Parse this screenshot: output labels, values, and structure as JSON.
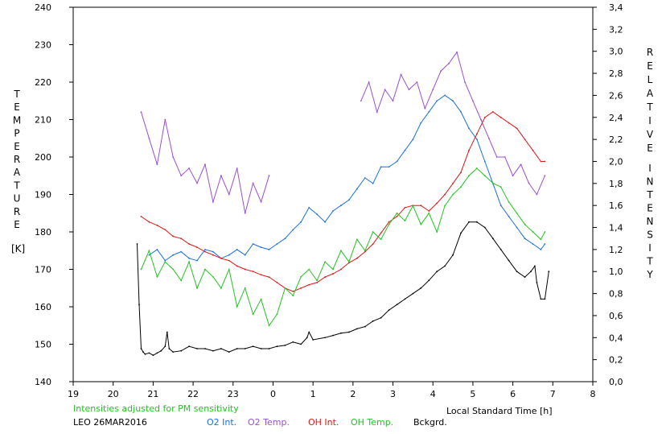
{
  "chart_data": {
    "type": "line",
    "xlabel": "Local Standard Time [h]",
    "x_ticks": [
      "19",
      "20",
      "21",
      "22",
      "23",
      "0",
      "1",
      "2",
      "3",
      "4",
      "5",
      "6",
      "7",
      "8"
    ],
    "y_left_label_letters": [
      "T",
      "E",
      "M",
      "P",
      "E",
      "R",
      "A",
      "T",
      "U",
      "R",
      "E"
    ],
    "y_left_unit": "[K]",
    "y_left_ticks": [
      140,
      150,
      160,
      170,
      180,
      190,
      200,
      210,
      220,
      230,
      240
    ],
    "ylim_left": [
      140,
      240
    ],
    "y_right_label_letters_1": [
      "R",
      "E",
      "L",
      "A",
      "T",
      "I",
      "V",
      "E"
    ],
    "y_right_label_letters_2": [
      "I",
      "N",
      "T",
      "E",
      "N",
      "S",
      "I",
      "T",
      "Y"
    ],
    "y_right_ticks": [
      "0,0",
      "0,2",
      "0,4",
      "0,6",
      "0,8",
      "1,0",
      "1,2",
      "1,4",
      "1,6",
      "1,8",
      "2,0",
      "2,2",
      "2,4",
      "2,6",
      "2,8",
      "3,0",
      "3,2",
      "3,4"
    ],
    "ylim_right": [
      0,
      3.4
    ],
    "xlim": [
      -5,
      8
    ],
    "note": "Intensities adjusted for PM sensitivity",
    "station_date": "LEO 26MAR2016",
    "series": [
      {
        "name": "O2 Int.",
        "color": "#1a6fe0",
        "axis": "right",
        "x": [
          -3.1,
          -2.9,
          -2.7,
          -2.5,
          -2.3,
          -2.1,
          -1.9,
          -1.7,
          -1.5,
          -1.3,
          -1.1,
          -0.9,
          -0.7,
          -0.5,
          -0.3,
          -0.1,
          0.1,
          0.3,
          0.5,
          0.7,
          0.9,
          1.1,
          1.3,
          1.5,
          1.7,
          1.9,
          2.1,
          2.3,
          2.5,
          2.7,
          2.9,
          3.1,
          3.3,
          3.5,
          3.7,
          3.9,
          4.1,
          4.3,
          4.5,
          4.7,
          4.9,
          5.1,
          5.3,
          5.5,
          5.7,
          5.9,
          6.1,
          6.3,
          6.5,
          6.7,
          6.8
        ],
        "y": [
          1.15,
          1.2,
          1.1,
          1.15,
          1.18,
          1.12,
          1.1,
          1.2,
          1.18,
          1.12,
          1.15,
          1.2,
          1.15,
          1.25,
          1.22,
          1.2,
          1.25,
          1.3,
          1.38,
          1.45,
          1.58,
          1.52,
          1.45,
          1.55,
          1.6,
          1.65,
          1.75,
          1.85,
          1.8,
          1.95,
          1.95,
          2.0,
          2.1,
          2.2,
          2.35,
          2.45,
          2.55,
          2.6,
          2.55,
          2.45,
          2.3,
          2.2,
          2.0,
          1.8,
          1.6,
          1.5,
          1.4,
          1.3,
          1.25,
          1.2,
          1.25
        ]
      },
      {
        "name": "O2 Temp.",
        "color": "#9a4fd6",
        "axis": "left",
        "x": [
          -3.3,
          -3.1,
          -2.9,
          -2.7,
          -2.5,
          -2.3,
          -2.1,
          -1.9,
          -1.7,
          -1.5,
          -1.3,
          -1.1,
          -0.9,
          -0.7,
          -0.5,
          -0.3,
          -0.1,
          null,
          2.2,
          2.4,
          2.6,
          2.8,
          3.0,
          3.2,
          3.4,
          3.6,
          3.8,
          4.0,
          4.2,
          4.4,
          4.6,
          4.8,
          5.0,
          5.2,
          5.4,
          5.6,
          5.8,
          6.0,
          6.2,
          6.4,
          6.6,
          6.8
        ],
        "y": [
          212,
          205,
          198,
          210,
          200,
          195,
          197,
          193,
          198,
          188,
          195,
          190,
          197,
          185,
          193,
          188,
          195,
          null,
          215,
          220,
          212,
          218,
          215,
          222,
          218,
          220,
          213,
          218,
          223,
          225,
          228,
          220,
          215,
          210,
          205,
          200,
          200,
          195,
          198,
          193,
          190,
          195
        ]
      },
      {
        "name": "OH Int.",
        "color": "#e01515",
        "axis": "right",
        "x": [
          -3.3,
          -3.1,
          -2.9,
          -2.7,
          -2.5,
          -2.3,
          -2.1,
          -1.9,
          -1.7,
          -1.5,
          -1.3,
          -1.1,
          -0.9,
          -0.7,
          -0.5,
          -0.3,
          -0.1,
          0.1,
          0.3,
          0.5,
          0.7,
          0.9,
          1.1,
          1.3,
          1.5,
          1.7,
          1.9,
          2.1,
          2.3,
          2.5,
          2.7,
          2.9,
          3.1,
          3.3,
          3.5,
          3.7,
          3.9,
          4.1,
          4.3,
          4.5,
          4.7,
          4.9,
          5.1,
          5.3,
          5.5,
          5.7,
          5.9,
          6.1,
          6.3,
          6.5,
          6.7,
          6.8
        ],
        "y": [
          1.5,
          1.45,
          1.42,
          1.38,
          1.32,
          1.3,
          1.25,
          1.22,
          1.18,
          1.15,
          1.12,
          1.1,
          1.05,
          1.02,
          1.0,
          0.97,
          0.95,
          0.9,
          0.85,
          0.82,
          0.85,
          0.88,
          0.9,
          0.95,
          0.98,
          1.02,
          1.08,
          1.12,
          1.18,
          1.25,
          1.35,
          1.45,
          1.5,
          1.58,
          1.6,
          1.6,
          1.55,
          1.62,
          1.7,
          1.8,
          1.9,
          2.1,
          2.25,
          2.4,
          2.45,
          2.4,
          2.35,
          2.3,
          2.2,
          2.1,
          2.0,
          2.0
        ]
      },
      {
        "name": "OH Temp.",
        "color": "#22c422",
        "axis": "left",
        "x": [
          -3.3,
          -3.1,
          -2.9,
          -2.7,
          -2.5,
          -2.3,
          -2.1,
          -1.9,
          -1.7,
          -1.5,
          -1.3,
          -1.1,
          -0.9,
          -0.7,
          -0.5,
          -0.3,
          -0.1,
          0.1,
          0.3,
          0.5,
          0.7,
          0.9,
          1.1,
          1.3,
          1.5,
          1.7,
          1.9,
          2.1,
          2.3,
          2.5,
          2.7,
          2.9,
          3.1,
          3.3,
          3.5,
          3.7,
          3.9,
          4.1,
          4.3,
          4.5,
          4.7,
          4.9,
          5.1,
          5.3,
          5.5,
          5.7,
          5.9,
          6.1,
          6.3,
          6.5,
          6.7,
          6.8
        ],
        "y": [
          170,
          175,
          168,
          172,
          170,
          167,
          172,
          165,
          170,
          168,
          165,
          170,
          160,
          165,
          158,
          162,
          155,
          158,
          165,
          163,
          168,
          170,
          167,
          172,
          170,
          175,
          172,
          178,
          175,
          180,
          178,
          182,
          185,
          183,
          187,
          182,
          185,
          180,
          187,
          190,
          192,
          195,
          197,
          195,
          193,
          192,
          188,
          185,
          182,
          180,
          178,
          180
        ]
      },
      {
        "name": "Bckgrd.",
        "color": "#000000",
        "axis": "right",
        "x": [
          -3.4,
          -3.35,
          -3.3,
          -3.25,
          -3.2,
          -3.1,
          -3.0,
          -2.9,
          -2.8,
          -2.7,
          -2.65,
          -2.6,
          -2.5,
          -2.3,
          -2.1,
          -1.9,
          -1.7,
          -1.5,
          -1.3,
          -1.1,
          -0.9,
          -0.7,
          -0.5,
          -0.3,
          -0.1,
          0.1,
          0.3,
          0.5,
          0.7,
          0.85,
          0.9,
          1.0,
          1.3,
          1.5,
          1.7,
          1.9,
          2.1,
          2.3,
          2.5,
          2.7,
          2.9,
          3.1,
          3.3,
          3.5,
          3.7,
          3.9,
          4.1,
          4.3,
          4.5,
          4.7,
          4.9,
          5.1,
          5.3,
          5.5,
          5.7,
          5.9,
          6.1,
          6.3,
          6.45,
          6.55,
          6.6,
          6.7,
          6.8,
          6.9
        ],
        "y": [
          1.25,
          0.7,
          0.3,
          0.27,
          0.25,
          0.26,
          0.24,
          0.26,
          0.28,
          0.32,
          0.45,
          0.3,
          0.27,
          0.28,
          0.32,
          0.3,
          0.3,
          0.28,
          0.3,
          0.27,
          0.3,
          0.3,
          0.32,
          0.3,
          0.3,
          0.32,
          0.33,
          0.36,
          0.34,
          0.4,
          0.45,
          0.38,
          0.4,
          0.42,
          0.44,
          0.45,
          0.48,
          0.5,
          0.55,
          0.58,
          0.65,
          0.7,
          0.75,
          0.8,
          0.85,
          0.92,
          1.0,
          1.05,
          1.15,
          1.35,
          1.45,
          1.45,
          1.4,
          1.3,
          1.2,
          1.1,
          1.0,
          0.95,
          1.0,
          1.05,
          0.9,
          0.75,
          0.75,
          1.0
        ]
      }
    ]
  }
}
